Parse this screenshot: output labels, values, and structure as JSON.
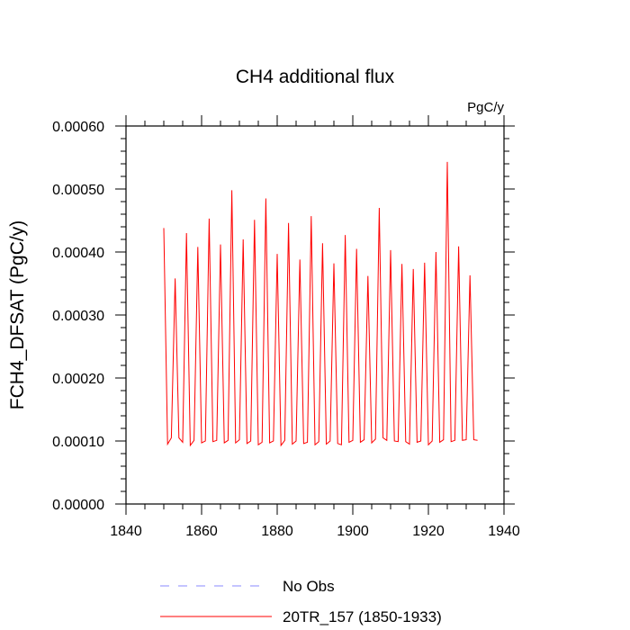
{
  "chart_data": {
    "type": "line",
    "title": "CH4 additional flux",
    "units": "PgC/y",
    "xlabel": "",
    "ylabel": "FCH4_DFSAT  (PgC/y)",
    "xlim": [
      1840,
      1940
    ],
    "ylim": [
      0,
      0.0006
    ],
    "x_ticks": [
      1840,
      1860,
      1880,
      1900,
      1920,
      1940
    ],
    "x_tick_labels": [
      "1840",
      "1860",
      "1880",
      "1900",
      "1920",
      "1940"
    ],
    "y_ticks": [
      0,
      0.0001,
      0.0002,
      0.0003,
      0.0004,
      0.0005,
      0.0006
    ],
    "y_tick_labels": [
      "0.00000",
      "0.00010",
      "0.00020",
      "0.00030",
      "0.00040",
      "0.00050",
      "0.00060"
    ],
    "series": [
      {
        "name": "20TR_157 (1850-1933)",
        "color": "#ff0000",
        "style": "solid",
        "x": [
          1850,
          1851,
          1852,
          1853,
          1854,
          1855,
          1856,
          1857,
          1858,
          1859,
          1860,
          1861,
          1862,
          1863,
          1864,
          1865,
          1866,
          1867,
          1868,
          1869,
          1870,
          1871,
          1872,
          1873,
          1874,
          1875,
          1876,
          1877,
          1878,
          1879,
          1880,
          1881,
          1882,
          1883,
          1884,
          1885,
          1886,
          1887,
          1888,
          1889,
          1890,
          1891,
          1892,
          1893,
          1894,
          1895,
          1896,
          1897,
          1898,
          1899,
          1900,
          1901,
          1902,
          1903,
          1904,
          1905,
          1906,
          1907,
          1908,
          1909,
          1910,
          1911,
          1912,
          1913,
          1914,
          1915,
          1916,
          1917,
          1918,
          1919,
          1920,
          1921,
          1922,
          1923,
          1924,
          1925,
          1926,
          1927,
          1928,
          1929,
          1930,
          1931,
          1932,
          1933
        ],
        "y": [
          0.000438,
          9.5e-05,
          0.000105,
          0.000358,
          0.000105,
          9.8e-05,
          0.00043,
          9.3e-05,
          0.000101,
          0.000408,
          9.7e-05,
          0.0001,
          0.000453,
          9.9e-05,
          0.000101,
          0.000412,
          9.7e-05,
          0.000101,
          0.000498,
          9.7e-05,
          0.000102,
          0.00042,
          9.6e-05,
          0.0001,
          0.000451,
          9.4e-05,
          9.8e-05,
          0.000485,
          9.7e-05,
          0.0001,
          0.000397,
          9.3e-05,
          0.000101,
          0.000446,
          9.5e-05,
          0.0001,
          0.000388,
          9.6e-05,
          9.8e-05,
          0.000457,
          9.4e-05,
          9.9e-05,
          0.000414,
          9.5e-05,
          0.0001,
          0.000382,
          9.6e-05,
          9.4e-05,
          0.000427,
          9.8e-05,
          0.000101,
          0.000405,
          9.8e-05,
          0.000102,
          0.000362,
          9.7e-05,
          0.000103,
          0.00047,
          0.000105,
          0.000101,
          0.000403,
          0.0001,
          9.9e-05,
          0.000381,
          9.9e-05,
          9.5e-05,
          0.000373,
          9.8e-05,
          0.0001,
          0.000383,
          9.4e-05,
          0.0001,
          0.0004,
          9.8e-05,
          0.000102,
          0.000543,
          9.9e-05,
          0.000101,
          0.000409,
          0.000101,
          0.000102,
          0.000363,
          0.000102,
          0.000101
        ]
      }
    ],
    "legend": {
      "position": "bottom",
      "entries": [
        {
          "label": "No Obs",
          "color": "#8a8aff",
          "style": "dashed"
        },
        {
          "label": "20TR_157 (1850-1933)",
          "color": "#ff0000",
          "style": "solid"
        }
      ]
    },
    "grid": false
  }
}
